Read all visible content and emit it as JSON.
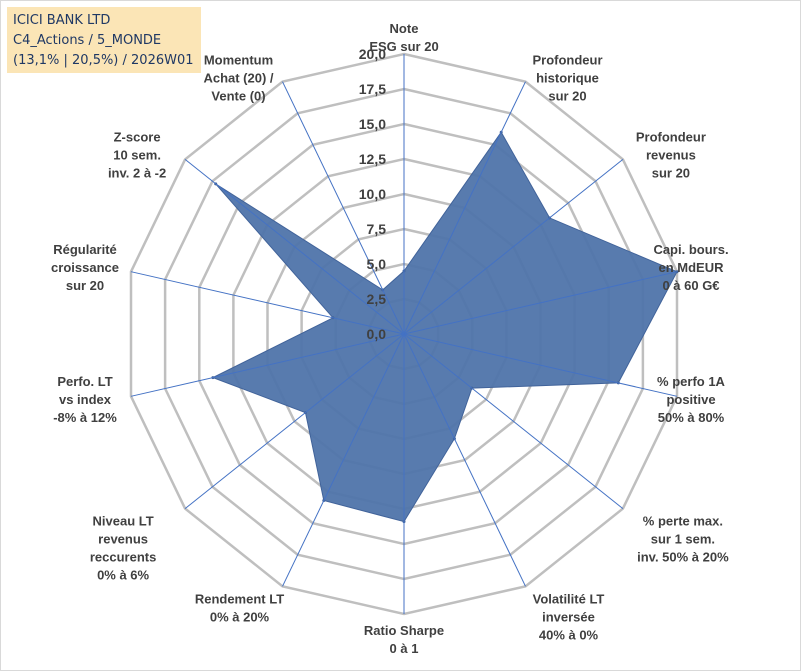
{
  "title_box": {
    "line1": "ICICI BANK LTD",
    "line2": "C4_Actions / 5_MONDE",
    "line3": "(13,1% | 20,5%) / 2026W01"
  },
  "colors": {
    "fill": "#4f74aa",
    "stroke": "#41639a",
    "grid": "#bfbfbf",
    "spoke": "#4472c4",
    "title_bg": "#fbe5b6",
    "title_text": "#1f3864"
  },
  "chart_data": {
    "type": "radar",
    "ylim": [
      0,
      20
    ],
    "grid_step": 2.5,
    "tick_labels": [
      "0,0",
      "2,5",
      "5,0",
      "7,5",
      "10,0",
      "12,5",
      "15,0",
      "17,5",
      "20,0"
    ],
    "axes": [
      {
        "label": [
          "Note",
          "ESG sur 20"
        ],
        "value": 4.5
      },
      {
        "label": [
          "Profondeur",
          "historique",
          "sur 20"
        ],
        "value": 16.0
      },
      {
        "label": [
          "Profondeur",
          "revenus",
          "sur 20"
        ],
        "value": 13.3
      },
      {
        "label": [
          "Capi. bours.",
          "en MdEUR",
          "0 à 60 G€"
        ],
        "value": 20.0
      },
      {
        "label": [
          "% perfo 1A",
          "positive",
          "50% à 80%"
        ],
        "value": 15.7
      },
      {
        "label": [
          "% perte max.",
          "sur 1 sem.",
          "inv. 50% à 20%"
        ],
        "value": 6.2
      },
      {
        "label": [
          "Volatilité LT",
          "inversée",
          "40% à 0%"
        ],
        "value": 8.3
      },
      {
        "label": [
          "Ratio Sharpe",
          "0 à 1"
        ],
        "value": 13.4
      },
      {
        "label": [
          "Rendement LT",
          "0% à 20%"
        ],
        "value": 13.2
      },
      {
        "label": [
          "Niveau LT",
          "revenus",
          "reccurents",
          "0% à 6%"
        ],
        "value": 9.0
      },
      {
        "label": [
          "Perfo. LT",
          "vs index",
          "-8% à 12%"
        ],
        "value": 14.0
      },
      {
        "label": [
          "Régularité",
          "croissance",
          "sur 20"
        ],
        "value": 5.2
      },
      {
        "label": [
          "Z-score",
          "10 sem.",
          "inv. 2 à -2"
        ],
        "value": 17.2
      },
      {
        "label": [
          "Momentum",
          "Achat (20) /",
          "Vente (0)"
        ],
        "value": 3.5
      }
    ]
  }
}
